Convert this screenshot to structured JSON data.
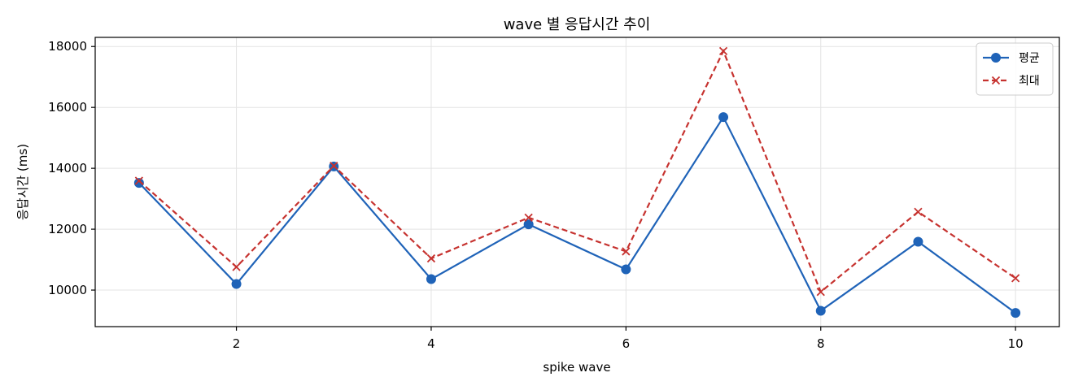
{
  "chart_data": {
    "type": "line",
    "title": "wave 별 응답시간 추이",
    "xlabel": "spike wave",
    "ylabel": "응답시간 (ms)",
    "x": [
      1,
      2,
      3,
      4,
      5,
      6,
      7,
      8,
      9,
      10
    ],
    "xticks": [
      2,
      4,
      6,
      8,
      10
    ],
    "yticks": [
      10000,
      12000,
      14000,
      16000,
      18000
    ],
    "xlim": [
      0.55,
      10.45
    ],
    "ylim": [
      8800,
      18300
    ],
    "grid": true,
    "legend_position": "top-right",
    "series": [
      {
        "name": "평균",
        "color": "#1f63b8",
        "line_style": "solid",
        "marker": "circle",
        "values": [
          13520,
          10200,
          14060,
          10360,
          12160,
          10680,
          15680,
          9320,
          11590,
          9250
        ]
      },
      {
        "name": "최대",
        "color": "#c6322f",
        "line_style": "dashed",
        "marker": "x",
        "values": [
          13590,
          10760,
          14080,
          11040,
          12380,
          11270,
          17850,
          9940,
          12570,
          10390
        ]
      }
    ]
  }
}
